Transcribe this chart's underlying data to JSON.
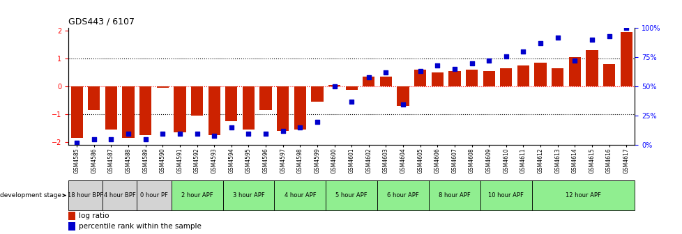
{
  "title": "GDS443 / 6107",
  "samples": [
    "GSM4585",
    "GSM4586",
    "GSM4587",
    "GSM4588",
    "GSM4589",
    "GSM4590",
    "GSM4591",
    "GSM4592",
    "GSM4593",
    "GSM4594",
    "GSM4595",
    "GSM4596",
    "GSM4597",
    "GSM4598",
    "GSM4599",
    "GSM4600",
    "GSM4601",
    "GSM4602",
    "GSM4603",
    "GSM4604",
    "GSM4605",
    "GSM4606",
    "GSM4607",
    "GSM4608",
    "GSM4609",
    "GSM4610",
    "GSM4611",
    "GSM4612",
    "GSM4613",
    "GSM4614",
    "GSM4615",
    "GSM4616",
    "GSM4617"
  ],
  "log_ratio": [
    -1.85,
    -0.85,
    -1.55,
    -1.85,
    -1.75,
    -0.05,
    -1.65,
    -1.05,
    -1.75,
    -1.25,
    -1.55,
    -0.85,
    -1.6,
    -1.55,
    -0.55,
    0.05,
    -0.12,
    0.35,
    0.35,
    -0.7,
    0.6,
    0.5,
    0.55,
    0.6,
    0.55,
    0.65,
    0.75,
    0.85,
    0.65,
    1.05,
    1.3,
    0.8,
    1.95
  ],
  "percentile": [
    2,
    5,
    5,
    10,
    5,
    10,
    10,
    10,
    8,
    15,
    10,
    10,
    12,
    15,
    20,
    50,
    37,
    58,
    62,
    35,
    63,
    68,
    65,
    70,
    72,
    76,
    80,
    87,
    92,
    72,
    90,
    93,
    100
  ],
  "stages": [
    {
      "label": "18 hour BPF",
      "start": 0,
      "end": 2,
      "color": "#d3d3d3"
    },
    {
      "label": "4 hour BPF",
      "start": 2,
      "end": 4,
      "color": "#d3d3d3"
    },
    {
      "label": "0 hour PF",
      "start": 4,
      "end": 6,
      "color": "#d3d3d3"
    },
    {
      "label": "2 hour APF",
      "start": 6,
      "end": 9,
      "color": "#90ee90"
    },
    {
      "label": "3 hour APF",
      "start": 9,
      "end": 12,
      "color": "#90ee90"
    },
    {
      "label": "4 hour APF",
      "start": 12,
      "end": 15,
      "color": "#90ee90"
    },
    {
      "label": "5 hour APF",
      "start": 15,
      "end": 18,
      "color": "#90ee90"
    },
    {
      "label": "6 hour APF",
      "start": 18,
      "end": 21,
      "color": "#90ee90"
    },
    {
      "label": "8 hour APF",
      "start": 21,
      "end": 24,
      "color": "#90ee90"
    },
    {
      "label": "10 hour APF",
      "start": 24,
      "end": 27,
      "color": "#90ee90"
    },
    {
      "label": "12 hour APF",
      "start": 27,
      "end": 33,
      "color": "#90ee90"
    }
  ],
  "bar_color": "#cc2200",
  "dot_color": "#0000cc",
  "ylim": [
    -2.1,
    2.1
  ],
  "y2lim": [
    0,
    100
  ],
  "yticks_left": [
    -2,
    -1,
    0,
    1,
    2
  ],
  "yticks_right": [
    0,
    25,
    50,
    75,
    100
  ],
  "ytick_right_labels": [
    "0%",
    "25%",
    "50%",
    "75%",
    "100%"
  ]
}
